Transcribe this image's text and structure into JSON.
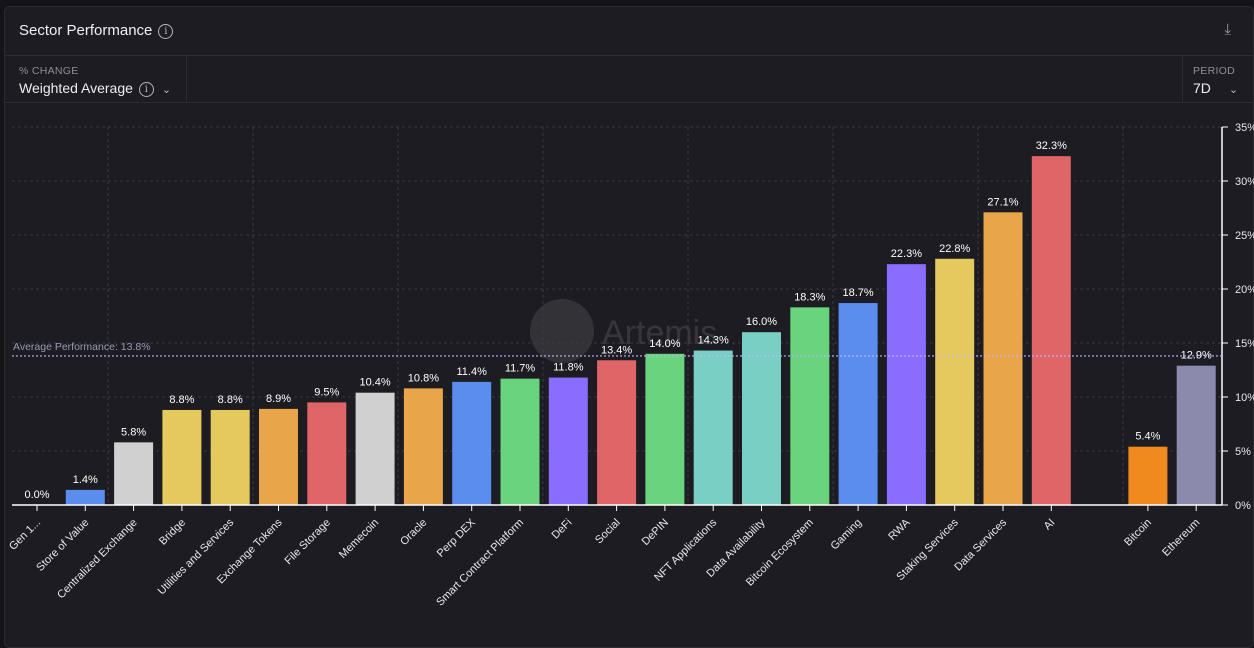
{
  "header": {
    "title": "Sector Performance",
    "info_icon": "info-icon",
    "download_icon": "download-icon"
  },
  "controls": {
    "change": {
      "label": "% CHANGE",
      "value": "Weighted Average"
    },
    "period": {
      "label": "PERIOD",
      "value": "7D"
    }
  },
  "watermark": "Artemis",
  "chart_data": {
    "type": "bar",
    "categories": [
      "Gen 1...",
      "Store of Value",
      "Centralized Exchange",
      "Bridge",
      "Utilities and Services",
      "Exchange Tokens",
      "File Storage",
      "Memecoin",
      "Oracle",
      "Perp DEX",
      "Smart Contract Platform",
      "DeFi",
      "Social",
      "DePIN",
      "NFT Applications",
      "Data Availability",
      "Bitcoin Ecosystem",
      "Gaming",
      "RWA",
      "Staking Services",
      "Data Services",
      "AI",
      "",
      "Bitcoin",
      "Ethereum"
    ],
    "values": [
      0.0,
      1.4,
      5.8,
      8.8,
      8.8,
      8.9,
      9.5,
      10.4,
      10.8,
      11.4,
      11.7,
      11.8,
      13.4,
      14.0,
      14.3,
      16.0,
      18.3,
      18.7,
      22.3,
      22.8,
      27.1,
      32.3,
      null,
      5.4,
      12.9
    ],
    "data_labels": [
      "0.0%",
      "1.4%",
      "5.8%",
      "8.8%",
      "8.8%",
      "8.9%",
      "9.5%",
      "10.4%",
      "10.8%",
      "11.4%",
      "11.7%",
      "11.8%",
      "13.4%",
      "14.0%",
      "14.3%",
      "16.0%",
      "18.3%",
      "18.7%",
      "22.3%",
      "22.8%",
      "27.1%",
      "32.3%",
      "",
      "5.4%",
      "12.9%"
    ],
    "colors": [
      "#5b8def",
      "#5b8def",
      "#d0d0d0",
      "#e5c95d",
      "#e5c95d",
      "#e8a54a",
      "#e06567",
      "#d0d0d0",
      "#e8a54a",
      "#5b8def",
      "#69d37e",
      "#8a6cff",
      "#e06567",
      "#69d37e",
      "#79cfc3",
      "#79cfc3",
      "#69d37e",
      "#5b8def",
      "#8a6cff",
      "#e5c95d",
      "#e8a54a",
      "#e06567",
      "",
      "#f0891e",
      "#8b8aad"
    ],
    "ylim": [
      0,
      35
    ],
    "yticks": [
      "0%",
      "5%",
      "10%",
      "15%",
      "20%",
      "25%",
      "30%",
      "35%"
    ],
    "y_axis_position": "right",
    "grid": true,
    "reference_line": {
      "value": 13.8,
      "label": "Average Performance: 13.8%"
    }
  }
}
